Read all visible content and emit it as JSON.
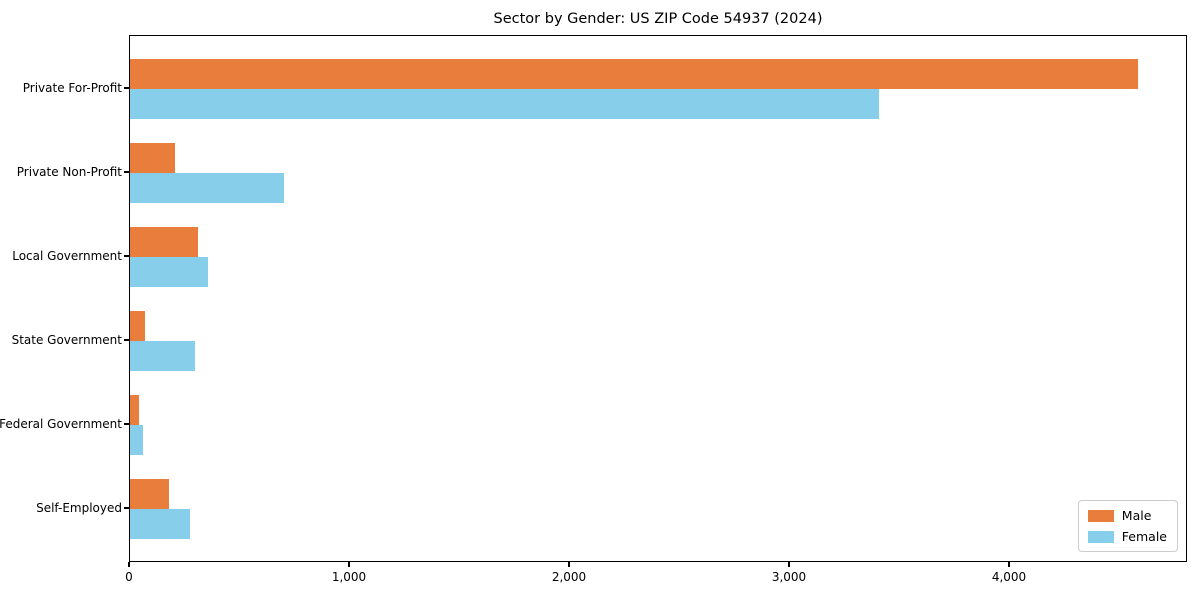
{
  "title": "Sector by Gender: US ZIP Code 54937 (2024)",
  "chart_data": {
    "type": "bar",
    "orientation": "horizontal",
    "title": "Sector by Gender: US ZIP Code 54937 (2024)",
    "categories": [
      "Private For-Profit",
      "Private Non-Profit",
      "Local Government",
      "State Government",
      "Federal Government",
      "Self-Employed"
    ],
    "series": [
      {
        "name": "Male",
        "color": "#e87d3c",
        "values": [
          4580,
          205,
          310,
          68,
          40,
          177
        ]
      },
      {
        "name": "Female",
        "color": "#87ceeb",
        "values": [
          3405,
          700,
          355,
          296,
          57,
          273
        ]
      }
    ],
    "xlabel": "",
    "ylabel": "",
    "xlim": [
      0,
      4809
    ],
    "x_ticks": [
      0,
      1000,
      2000,
      3000,
      4000
    ],
    "x_tick_labels": [
      "0",
      "1,000",
      "2,000",
      "3,000",
      "4,000"
    ],
    "grid": false,
    "legend_position": "lower right"
  },
  "legend": {
    "items": [
      {
        "label": "Male",
        "color": "#e87d3c"
      },
      {
        "label": "Female",
        "color": "#87ceeb"
      }
    ]
  }
}
